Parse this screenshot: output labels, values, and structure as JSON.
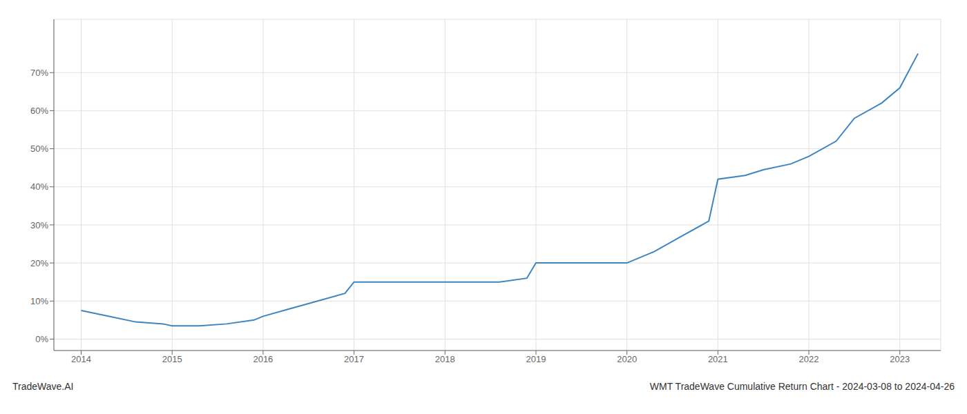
{
  "chart_data": {
    "type": "line",
    "title": "WMT TradeWave Cumulative Return Chart - 2024-03-08 to 2024-04-26",
    "annotations": [
      "TradeWave.AI"
    ],
    "x": [
      2014.0,
      2014.3,
      2014.6,
      2014.9,
      2015.0,
      2015.3,
      2015.6,
      2015.9,
      2016.0,
      2016.3,
      2016.6,
      2016.9,
      2017.0,
      2017.2,
      2017.5,
      2017.8,
      2018.0,
      2018.3,
      2018.6,
      2018.9,
      2019.0,
      2019.3,
      2019.5,
      2019.8,
      2020.0,
      2020.3,
      2020.6,
      2020.9,
      2021.0,
      2021.3,
      2021.5,
      2021.8,
      2022.0,
      2022.3,
      2022.5,
      2022.8,
      2023.0,
      2023.2
    ],
    "values": [
      7.5,
      6.0,
      4.5,
      4.0,
      3.5,
      3.5,
      4.0,
      5.0,
      6.0,
      8.0,
      10.0,
      12.0,
      15.0,
      15.0,
      15.0,
      15.0,
      15.0,
      15.0,
      15.0,
      16.0,
      20.0,
      20.0,
      20.0,
      20.0,
      20.0,
      23.0,
      27.0,
      31.0,
      42.0,
      43.0,
      44.5,
      46.0,
      48.0,
      52.0,
      58.0,
      62.0,
      66.0,
      75.0
    ],
    "color": "#3d85c0",
    "xlim": [
      2013.7,
      2023.45
    ],
    "ylim": [
      -3,
      84
    ],
    "xticks": [
      2014,
      2015,
      2016,
      2017,
      2018,
      2019,
      2020,
      2021,
      2022,
      2023
    ],
    "yticks": [
      {
        "value": 0,
        "label": "0%"
      },
      {
        "value": 10,
        "label": "10%"
      },
      {
        "value": 20,
        "label": "20%"
      },
      {
        "value": 30,
        "label": "30%"
      },
      {
        "value": 40,
        "label": "40%"
      },
      {
        "value": 50,
        "label": "50%"
      },
      {
        "value": 60,
        "label": "60%"
      },
      {
        "value": 70,
        "label": "70%"
      }
    ],
    "grid": true
  }
}
